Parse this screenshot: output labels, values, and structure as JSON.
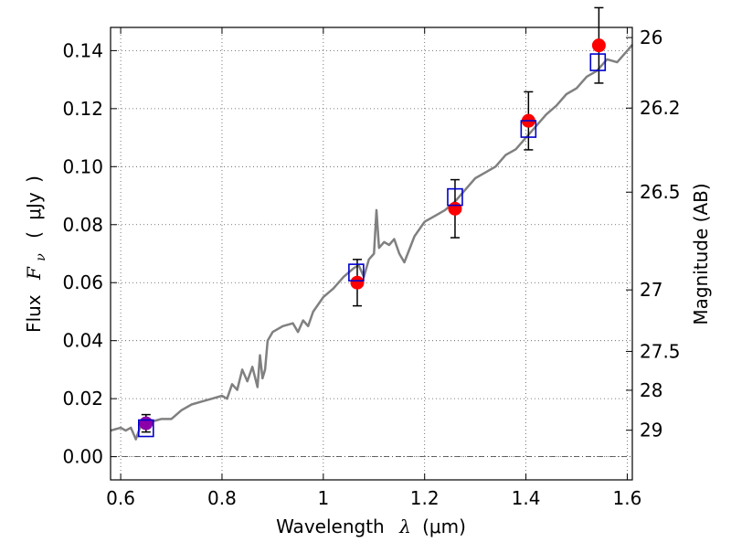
{
  "chart_data": {
    "type": "scatter",
    "x": {
      "label": "Wavelength",
      "label_symbol": "λ",
      "label_unit": "(μm)",
      "lim": [
        0.58,
        1.61
      ],
      "ticks": [
        0.6,
        0.8,
        1.0,
        1.2,
        1.4,
        1.6
      ],
      "tick_labels": [
        "0.6",
        "0.8",
        "1",
        "1.2",
        "1.4",
        "1.6"
      ]
    },
    "y": {
      "label": "Flux",
      "label_symbol": "F",
      "label_subscript": "ν",
      "label_unit": "μJy",
      "lim": [
        -0.008,
        0.148
      ],
      "ticks": [
        0.0,
        0.02,
        0.04,
        0.06,
        0.08,
        0.1,
        0.12,
        0.14
      ],
      "tick_labels": [
        "0.00",
        "0.02",
        "0.04",
        "0.06",
        "0.08",
        "0.10",
        "0.12",
        "0.14"
      ]
    },
    "y2": {
      "label": "Magnitude (AB)",
      "tick_labels": [
        "26",
        "26.2",
        "26.5",
        "27",
        "27.5",
        "28",
        "29"
      ],
      "tick_flux": [
        0.1445,
        0.1202,
        0.0912,
        0.0575,
        0.0363,
        0.0229,
        0.00912
      ]
    },
    "grid": true,
    "zero_line": true,
    "template_spectrum": {
      "color": "#808080",
      "x": [
        0.58,
        0.6,
        0.61,
        0.62,
        0.63,
        0.64,
        0.66,
        0.68,
        0.7,
        0.72,
        0.74,
        0.76,
        0.78,
        0.8,
        0.81,
        0.82,
        0.83,
        0.84,
        0.85,
        0.86,
        0.87,
        0.875,
        0.88,
        0.885,
        0.89,
        0.9,
        0.92,
        0.94,
        0.95,
        0.96,
        0.97,
        0.98,
        1.0,
        1.02,
        1.04,
        1.06,
        1.07,
        1.08,
        1.09,
        1.1,
        1.105,
        1.11,
        1.12,
        1.13,
        1.14,
        1.15,
        1.16,
        1.18,
        1.2,
        1.22,
        1.24,
        1.26,
        1.28,
        1.3,
        1.32,
        1.34,
        1.36,
        1.38,
        1.4,
        1.42,
        1.44,
        1.46,
        1.48,
        1.5,
        1.52,
        1.54,
        1.56,
        1.58,
        1.6,
        1.61
      ],
      "y": [
        0.009,
        0.01,
        0.009,
        0.01,
        0.006,
        0.011,
        0.012,
        0.013,
        0.013,
        0.016,
        0.018,
        0.019,
        0.02,
        0.021,
        0.02,
        0.025,
        0.023,
        0.03,
        0.026,
        0.031,
        0.024,
        0.035,
        0.027,
        0.03,
        0.04,
        0.043,
        0.045,
        0.046,
        0.043,
        0.047,
        0.045,
        0.05,
        0.055,
        0.058,
        0.062,
        0.065,
        0.066,
        0.062,
        0.068,
        0.07,
        0.085,
        0.072,
        0.074,
        0.073,
        0.075,
        0.07,
        0.067,
        0.076,
        0.081,
        0.083,
        0.085,
        0.088,
        0.092,
        0.096,
        0.098,
        0.1,
        0.104,
        0.106,
        0.11,
        0.114,
        0.118,
        0.121,
        0.125,
        0.127,
        0.131,
        0.133,
        0.137,
        0.136,
        0.14,
        0.142
      ]
    },
    "series": [
      {
        "marker": "circle",
        "color": "#ff0000",
        "x": [
          1.067,
          1.26,
          1.405,
          1.544
        ],
        "y": [
          0.06,
          0.0855,
          0.1158,
          0.1418
        ],
        "yerr": [
          0.008,
          0.01,
          0.01,
          0.013
        ]
      },
      {
        "marker": "circle",
        "color": "#8b00a8",
        "x": [
          0.65
        ],
        "y": [
          0.0115
        ],
        "yerr": [
          0.003
        ]
      },
      {
        "marker": "square-open",
        "color": "#0000cc",
        "x": [
          0.65,
          1.065,
          1.26,
          1.405,
          1.542
        ],
        "y": [
          0.0098,
          0.0635,
          0.0895,
          0.113,
          0.136
        ]
      }
    ]
  }
}
